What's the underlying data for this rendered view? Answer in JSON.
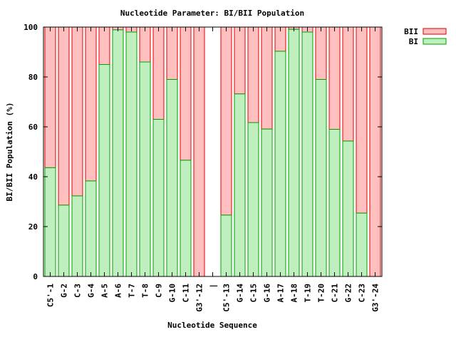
{
  "chart_data": {
    "type": "bar",
    "stacked": true,
    "title": "Nucleotide Parameter: BI/BII Population",
    "xlabel": "Nucleotide Sequence",
    "ylabel": "BI/BII Population (%)",
    "ylim": [
      0,
      100
    ],
    "yticks": [
      "0",
      "20",
      "40",
      "60",
      "80",
      "100"
    ],
    "grid": false,
    "legend_position": "top-right",
    "categories": [
      "C5'-1",
      "G-2",
      "C-3",
      "G-4",
      "A-5",
      "A-6",
      "T-7",
      "T-8",
      "C-9",
      "G-10",
      "C-11",
      "G3'-12",
      "|",
      "C5'-13",
      "G-14",
      "C-15",
      "G-16",
      "A-17",
      "A-18",
      "T-19",
      "T-20",
      "C-21",
      "G-22",
      "C-23",
      "G3'-24"
    ],
    "series": [
      {
        "name": "BII",
        "color": "#ffbfbf",
        "edge": "#e00000",
        "values": [
          56.4,
          71.4,
          67.7,
          61.7,
          15.0,
          1.1,
          2.0,
          14.0,
          37.0,
          21.0,
          53.4,
          100.0,
          null,
          75.4,
          26.8,
          38.3,
          40.9,
          9.7,
          0.9,
          2.0,
          21.0,
          41.0,
          45.7,
          74.6,
          100.0
        ]
      },
      {
        "name": "BI",
        "color": "#bfefbf",
        "edge": "#00a000",
        "values": [
          43.6,
          28.6,
          32.3,
          38.3,
          85.0,
          98.9,
          98.0,
          86.0,
          63.0,
          79.0,
          46.6,
          0.0,
          null,
          24.6,
          73.2,
          61.7,
          59.1,
          90.3,
          99.1,
          98.0,
          79.0,
          59.0,
          54.3,
          25.4,
          0.0
        ]
      }
    ]
  }
}
